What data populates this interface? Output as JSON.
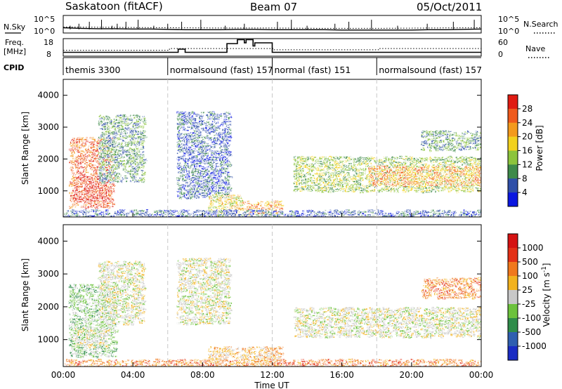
{
  "header": {
    "site": "Saskatoon (fitACF)",
    "beam": "Beam 07",
    "date": "05/Oct/2011"
  },
  "side_labels": {
    "nsky": "N.Sky",
    "freq": "Freq.",
    "freq_unit": "[MHz]",
    "cpid": "CPID",
    "nsearch": "N.Search",
    "nave": "Nave"
  },
  "cpid_segments": [
    {
      "label": "themis 3300",
      "start_h": 0,
      "end_h": 6
    },
    {
      "label": "normalsound (fast) 157",
      "start_h": 6,
      "end_h": 12
    },
    {
      "label": "normal (fast) 151",
      "start_h": 12,
      "end_h": 18
    },
    {
      "label": "normalsound (fast) 157",
      "start_h": 18,
      "end_h": 24
    }
  ],
  "chart_data": [
    {
      "type": "line",
      "panel": "noise",
      "series": [
        {
          "name": "N.Sky",
          "x": [
            0,
            1,
            2,
            3,
            4,
            5,
            6,
            7,
            8,
            9,
            10,
            11,
            12,
            13,
            14,
            15,
            16,
            17,
            18,
            19,
            20,
            21,
            22,
            23,
            24
          ],
          "y": [
            1.6,
            1.4,
            1.3,
            1.3,
            1.2,
            1.2,
            1.1,
            1.0,
            1.0,
            1.0,
            1.1,
            1.1,
            1.0,
            1.0,
            1.0,
            1.0,
            0.9,
            0.9,
            0.9,
            0.9,
            0.9,
            1.0,
            1.0,
            1.1,
            1.2
          ]
        },
        {
          "name": "N.Search",
          "x": [
            0,
            3,
            6,
            9,
            12,
            15,
            18,
            21,
            24
          ],
          "y": [
            1.8,
            1.7,
            1.6,
            1.5,
            1.5,
            1.4,
            1.4,
            1.5,
            1.6
          ]
        }
      ],
      "left_ticks": [
        "10^5",
        "10^0"
      ],
      "right_ticks": [
        "10^5",
        "10^0"
      ]
    },
    {
      "type": "line",
      "panel": "freq_nave",
      "series": [
        {
          "name": "Freq.",
          "x": [
            0,
            6.5,
            6.6,
            6.9,
            7.0,
            9.2,
            9.4,
            9.9,
            10.0,
            10.4,
            10.5,
            10.9,
            11.0,
            11.8,
            12.0,
            24
          ],
          "y": [
            10.0,
            10.0,
            12.0,
            12.0,
            10.0,
            10.0,
            15.5,
            15.5,
            18.0,
            16.0,
            18.0,
            14.0,
            16.0,
            16.0,
            10.0,
            10.0
          ]
        },
        {
          "name": "Nave",
          "x": [
            0,
            6,
            6.1,
            12,
            12.1,
            18,
            18.1,
            24
          ],
          "y": [
            20,
            20,
            26,
            26,
            22,
            22,
            26,
            26
          ]
        }
      ],
      "left_ticks": [
        18,
        8
      ],
      "right_ticks": [
        60,
        0
      ]
    },
    {
      "type": "heatmap",
      "panel": "power",
      "ylabel": "Slant Range [km]",
      "yticks": [
        1000,
        2000,
        3000,
        4000
      ],
      "ylim": [
        180,
        4500
      ],
      "xlim": [
        0,
        24
      ],
      "colorbar_label": "Power [dB]",
      "colorbar_ticks": [
        "28",
        "24",
        "20",
        "16",
        "12",
        "8",
        "4"
      ],
      "colors": [
        "#0a17e0",
        "#2f4fa8",
        "#3e8a4a",
        "#8cc43c",
        "#f2d11e",
        "#f39a1d",
        "#ef5a1c",
        "#e01b12"
      ],
      "regions": [
        {
          "x": [
            0.3,
            2.8
          ],
          "y": [
            500,
            2700
          ],
          "level": 6
        },
        {
          "x": [
            0.6,
            2.5
          ],
          "y": [
            700,
            1500
          ],
          "level": 7
        },
        {
          "x": [
            2.0,
            4.6
          ],
          "y": [
            1300,
            3400
          ],
          "level": 2
        },
        {
          "x": [
            6.5,
            9.5
          ],
          "y": [
            800,
            3500
          ],
          "level": 1
        },
        {
          "x": [
            8.3,
            10.2
          ],
          "y": [
            250,
            900
          ],
          "level": 4
        },
        {
          "x": [
            10.3,
            12.5
          ],
          "y": [
            250,
            700
          ],
          "level": 5
        },
        {
          "x": [
            13.2,
            24
          ],
          "y": [
            1000,
            2100
          ],
          "level": 3
        },
        {
          "x": [
            17.5,
            24
          ],
          "y": [
            1200,
            1800
          ],
          "level": 5
        },
        {
          "x": [
            20.5,
            24
          ],
          "y": [
            2300,
            2900
          ],
          "level": 2
        },
        {
          "x": [
            0,
            24
          ],
          "y": [
            180,
            420
          ],
          "level": 1
        }
      ]
    },
    {
      "type": "heatmap",
      "panel": "velocity",
      "ylabel": "Slant Range [km]",
      "xlabel": "Time UT",
      "xticks": [
        "00:00",
        "04:00",
        "08:00",
        "12:00",
        "16:00",
        "20:00",
        "00:00"
      ],
      "yticks": [
        1000,
        2000,
        3000,
        4000
      ],
      "ylim": [
        180,
        4500
      ],
      "xlim": [
        0,
        24
      ],
      "colorbar_label": "Velocity [m s^-1]",
      "colorbar_ticks": [
        "1000",
        "500",
        "100",
        "25",
        "-25",
        "-100",
        "-500",
        "-1000"
      ],
      "colors": [
        "#1a2cc4",
        "#2f5fb0",
        "#2f8c4a",
        "#6cc23c",
        "#c8c8c8",
        "#f2b21e",
        "#f0781c",
        "#e33016",
        "#d51212"
      ],
      "regions": [
        {
          "x": [
            0.3,
            3.0
          ],
          "y": [
            500,
            2700
          ],
          "level": 3
        },
        {
          "x": [
            0.5,
            2.5
          ],
          "y": [
            800,
            1400
          ],
          "level": 4
        },
        {
          "x": [
            2.0,
            4.6
          ],
          "y": [
            1500,
            3400
          ],
          "level": 4
        },
        {
          "x": [
            6.5,
            9.5
          ],
          "y": [
            1500,
            3500
          ],
          "level": 4
        },
        {
          "x": [
            8.3,
            12.5
          ],
          "y": [
            250,
            800
          ],
          "level": 5
        },
        {
          "x": [
            13.2,
            24
          ],
          "y": [
            1100,
            2000
          ],
          "level": 4
        },
        {
          "x": [
            20.5,
            24
          ],
          "y": [
            2300,
            2900
          ],
          "level": 6
        },
        {
          "x": [
            0,
            24
          ],
          "y": [
            180,
            420
          ],
          "level": 6
        }
      ]
    }
  ]
}
